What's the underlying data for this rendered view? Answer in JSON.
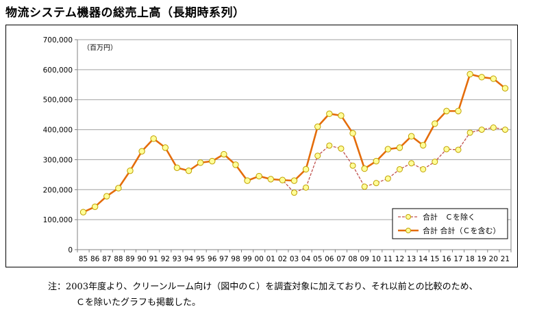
{
  "title": "物流システム機器の総売上高（長期時系列）",
  "note_line1": "注：2003年度より、クリーンルーム向け（図中のＣ）を調査対象に加えており、それ以前との比較のため、",
  "note_line2": "Ｃを除いたグラフも掲載した。",
  "chart_data": {
    "type": "line",
    "unit_label": "（百万円）",
    "categories": [
      "85",
      "86",
      "87",
      "88",
      "89",
      "90",
      "91",
      "92",
      "93",
      "94",
      "95",
      "96",
      "97",
      "98",
      "99",
      "00",
      "01",
      "02",
      "03",
      "04",
      "05",
      "06",
      "07",
      "08",
      "09",
      "10",
      "11",
      "12",
      "13",
      "14",
      "15",
      "16",
      "17",
      "18",
      "19",
      "20",
      "21"
    ],
    "ylim": [
      0,
      700000
    ],
    "yticks": [
      0,
      100000,
      200000,
      300000,
      400000,
      500000,
      600000,
      700000
    ],
    "ytick_labels": [
      "0",
      "100,000",
      "200,000",
      "300,000",
      "400,000",
      "500,000",
      "600,000",
      "700,000"
    ],
    "legend_position": "bottom-right",
    "series": [
      {
        "name": "合計　Ｃを除く",
        "color": "#c0504d",
        "style": "dashed",
        "values": [
          125000,
          143000,
          178000,
          205000,
          263000,
          328000,
          370000,
          340000,
          273000,
          263000,
          290000,
          295000,
          318000,
          283000,
          230000,
          245000,
          235000,
          232000,
          190000,
          207000,
          313000,
          347000,
          337000,
          280000,
          210000,
          222000,
          237000,
          268000,
          288000,
          268000,
          293000,
          335000,
          333000,
          390000,
          400000,
          407000,
          400000
        ]
      },
      {
        "name": "合計 合計（Ｃを含む）",
        "color": "#e46c0a",
        "style": "solid",
        "values": [
          125000,
          143000,
          178000,
          205000,
          263000,
          328000,
          370000,
          340000,
          273000,
          263000,
          290000,
          295000,
          318000,
          283000,
          230000,
          245000,
          235000,
          232000,
          230000,
          268000,
          410000,
          453000,
          447000,
          388000,
          270000,
          295000,
          335000,
          340000,
          378000,
          348000,
          420000,
          462000,
          462000,
          585000,
          575000,
          570000,
          538000
        ]
      }
    ]
  }
}
